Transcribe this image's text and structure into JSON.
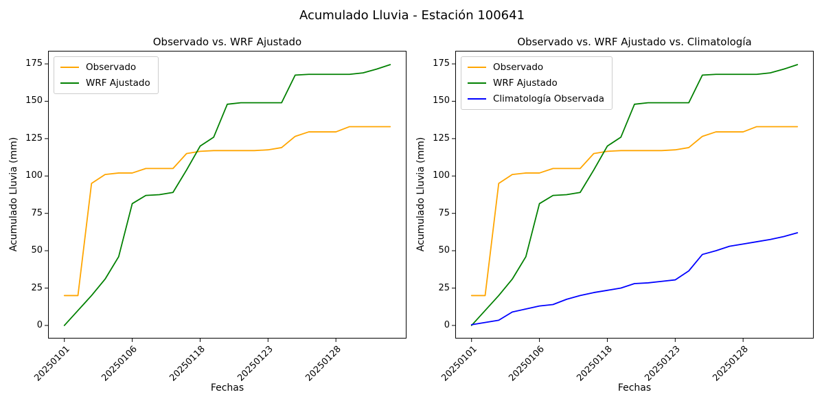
{
  "suptitle": "Acumulado Lluvia - Estación 100641",
  "chart_data": [
    {
      "type": "line",
      "title": "Observado vs. WRF Ajustado",
      "xlabel": "Fechas",
      "ylabel": "Acumulado Lluvia (mm)",
      "x": [
        0,
        1,
        2,
        3,
        4,
        5,
        6,
        7,
        8,
        9,
        10,
        11,
        12,
        13,
        14,
        15,
        16,
        17,
        18,
        19,
        20,
        21,
        22,
        23,
        24
      ],
      "xticks": [
        {
          "pos": 0,
          "label": "20250101"
        },
        {
          "pos": 5,
          "label": "20250106"
        },
        {
          "pos": 10,
          "label": "20250118"
        },
        {
          "pos": 15,
          "label": "20250123"
        },
        {
          "pos": 20,
          "label": "20250128"
        }
      ],
      "yticks": [
        0,
        25,
        50,
        75,
        100,
        125,
        150,
        175
      ],
      "xlim": [
        -1.2,
        25.2
      ],
      "ylim": [
        -8.75,
        183.75
      ],
      "grid": false,
      "legend_position": "upper left",
      "series": [
        {
          "name": "Observado",
          "color": "#FFA500",
          "values": [
            20,
            20,
            95,
            101,
            102,
            102,
            105,
            105,
            105,
            115,
            116.5,
            117,
            117,
            117,
            117,
            117.5,
            119,
            126.5,
            129.5,
            129.5,
            129.5,
            133,
            133,
            133,
            133
          ]
        },
        {
          "name": "WRF Ajustado",
          "color": "#008000",
          "values": [
            0,
            10,
            20,
            31,
            46,
            81.5,
            87,
            87.5,
            89,
            104,
            120,
            126,
            148,
            149,
            149,
            149,
            149,
            167.5,
            168,
            168,
            168,
            168,
            169,
            171.5,
            174.5
          ]
        }
      ]
    },
    {
      "type": "line",
      "title": "Observado vs. WRF Ajustado vs. Climatología",
      "xlabel": "Fechas",
      "ylabel": "Acumulado Lluvia (mm)",
      "x": [
        0,
        1,
        2,
        3,
        4,
        5,
        6,
        7,
        8,
        9,
        10,
        11,
        12,
        13,
        14,
        15,
        16,
        17,
        18,
        19,
        20,
        21,
        22,
        23,
        24
      ],
      "xticks": [
        {
          "pos": 0,
          "label": "20250101"
        },
        {
          "pos": 5,
          "label": "20250106"
        },
        {
          "pos": 10,
          "label": "20250118"
        },
        {
          "pos": 15,
          "label": "20250123"
        },
        {
          "pos": 20,
          "label": "20250128"
        }
      ],
      "yticks": [
        0,
        25,
        50,
        75,
        100,
        125,
        150,
        175
      ],
      "xlim": [
        -1.2,
        25.2
      ],
      "ylim": [
        -8.75,
        183.75
      ],
      "grid": false,
      "legend_position": "upper left",
      "series": [
        {
          "name": "Observado",
          "color": "#FFA500",
          "values": [
            20,
            20,
            95,
            101,
            102,
            102,
            105,
            105,
            105,
            115,
            116.5,
            117,
            117,
            117,
            117,
            117.5,
            119,
            126.5,
            129.5,
            129.5,
            129.5,
            133,
            133,
            133,
            133
          ]
        },
        {
          "name": "WRF Ajustado",
          "color": "#008000",
          "values": [
            0,
            10,
            20,
            31,
            46,
            81.5,
            87,
            87.5,
            89,
            104,
            120,
            126,
            148,
            149,
            149,
            149,
            149,
            167.5,
            168,
            168,
            168,
            168,
            169,
            171.5,
            174.5
          ]
        },
        {
          "name": "Climatología Observada",
          "color": "#0000FF",
          "values": [
            0.5,
            2,
            3.5,
            9,
            11,
            13,
            14,
            17.5,
            20,
            22,
            23.5,
            25,
            28,
            28.5,
            29.5,
            30.5,
            36.5,
            47.5,
            50,
            53,
            54.5,
            56,
            57.5,
            59.5,
            62
          ]
        }
      ]
    }
  ]
}
